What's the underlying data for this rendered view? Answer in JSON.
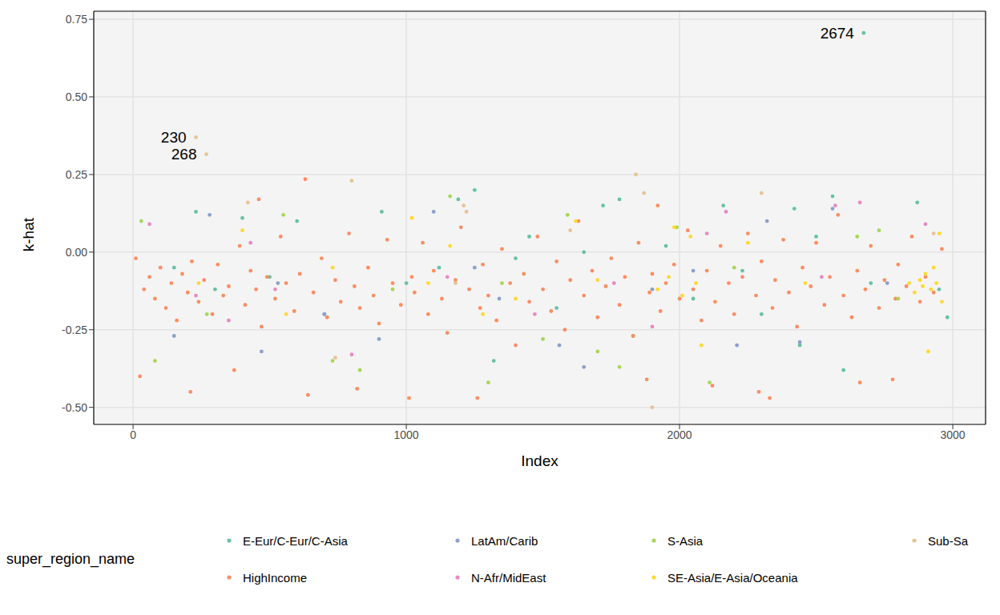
{
  "chart_data": {
    "type": "scatter",
    "x_label": "Index",
    "y_label": "k-hat",
    "legend_title": "super_region_name",
    "legend": "bottom",
    "grid": true,
    "marker": "circle",
    "xlim": [
      -144,
      3120
    ],
    "xticks": [
      0,
      1000,
      2000,
      3000
    ],
    "ylim": [
      -0.555,
      0.776
    ],
    "yticks": [
      {
        "value": -0.5,
        "label": "-0.50"
      },
      -0.25,
      {
        "value": 0,
        "label": "0.00"
      },
      0.25,
      {
        "value": 0.5,
        "label": "0.50"
      },
      0.75
    ],
    "annotations": [
      {
        "text": "230",
        "x": 230,
        "y": 0.37
      },
      {
        "text": "268",
        "x": 268,
        "y": 0.315
      },
      {
        "text": "2674",
        "x": 2674,
        "y": 0.706
      }
    ],
    "series": [
      {
        "name": "E-Eur/C-Eur/C-Asia",
        "color": "#66c2a5",
        "x": [
          150,
          230,
          300,
          400,
          500,
          600,
          700,
          910,
          1000,
          1120,
          1190,
          1250,
          1320,
          1400,
          1450,
          1550,
          1650,
          1720,
          1780,
          1830,
          1950,
          2050,
          2160,
          2230,
          2300,
          2420,
          2440,
          2500,
          2560,
          2600,
          2674,
          2700,
          2870,
          2950,
          2980
        ],
        "y": [
          -0.05,
          0.13,
          -0.12,
          0.11,
          -0.08,
          0.1,
          -0.2,
          0.13,
          -0.1,
          -0.05,
          0.17,
          0.2,
          -0.35,
          -0.02,
          0.05,
          -0.18,
          0.0,
          0.15,
          0.17,
          -0.27,
          0.02,
          -0.15,
          0.15,
          -0.06,
          -0.2,
          0.14,
          -0.3,
          0.05,
          0.18,
          -0.38,
          0.706,
          -0.1,
          0.16,
          -0.12,
          -0.21
        ]
      },
      {
        "name": "HighIncome",
        "color": "#fc8d62",
        "x": [
          10,
          25,
          40,
          60,
          80,
          100,
          120,
          140,
          160,
          180,
          200,
          210,
          215,
          240,
          260,
          290,
          310,
          330,
          350,
          370,
          390,
          410,
          430,
          450,
          460,
          470,
          490,
          520,
          540,
          560,
          590,
          610,
          630,
          640,
          660,
          690,
          710,
          740,
          760,
          790,
          810,
          820,
          830,
          860,
          880,
          900,
          930,
          950,
          980,
          1010,
          1020,
          1030,
          1060,
          1080,
          1100,
          1130,
          1150,
          1180,
          1200,
          1230,
          1260,
          1270,
          1280,
          1300,
          1330,
          1350,
          1380,
          1400,
          1430,
          1450,
          1480,
          1500,
          1530,
          1550,
          1580,
          1600,
          1630,
          1650,
          1680,
          1700,
          1730,
          1750,
          1780,
          1800,
          1830,
          1850,
          1880,
          1890,
          1900,
          1920,
          1930,
          1950,
          1980,
          2000,
          2030,
          2050,
          2080,
          2100,
          2120,
          2130,
          2150,
          2180,
          2200,
          2230,
          2250,
          2280,
          2290,
          2300,
          2330,
          2340,
          2350,
          2380,
          2400,
          2430,
          2450,
          2480,
          2500,
          2530,
          2550,
          2580,
          2600,
          2630,
          2650,
          2660,
          2680,
          2700,
          2730,
          2750,
          2780,
          2790,
          2800,
          2830,
          2850,
          2880,
          2900,
          2930,
          2960
        ],
        "y": [
          -0.02,
          -0.4,
          -0.12,
          -0.08,
          -0.15,
          -0.05,
          -0.18,
          -0.1,
          -0.22,
          -0.07,
          -0.13,
          -0.45,
          -0.03,
          -0.16,
          -0.09,
          -0.2,
          -0.04,
          -0.14,
          -0.11,
          -0.38,
          0.02,
          -0.17,
          -0.06,
          -0.12,
          0.17,
          -0.24,
          -0.08,
          -0.15,
          0.05,
          -0.1,
          -0.19,
          -0.07,
          0.235,
          -0.46,
          -0.13,
          -0.02,
          -0.21,
          -0.09,
          -0.16,
          0.06,
          -0.11,
          -0.44,
          -0.18,
          -0.05,
          -0.14,
          -0.23,
          0.04,
          -0.1,
          -0.17,
          -0.47,
          -0.08,
          -0.13,
          0.03,
          -0.2,
          -0.06,
          -0.15,
          -0.26,
          -0.09,
          0.08,
          -0.12,
          -0.47,
          -0.18,
          -0.04,
          -0.14,
          -0.22,
          0.01,
          -0.1,
          -0.3,
          -0.07,
          -0.16,
          0.05,
          -0.12,
          -0.19,
          -0.03,
          -0.25,
          -0.09,
          0.1,
          -0.14,
          -0.06,
          -0.21,
          -0.11,
          -0.02,
          -0.17,
          -0.08,
          -0.27,
          0.03,
          -0.41,
          -0.13,
          -0.07,
          0.15,
          -0.19,
          -0.1,
          -0.04,
          -0.15,
          0.07,
          -0.12,
          -0.22,
          -0.06,
          -0.43,
          -0.16,
          0.02,
          -0.1,
          -0.2,
          -0.08,
          0.06,
          -0.14,
          -0.45,
          -0.03,
          -0.47,
          -0.18,
          -0.09,
          0.04,
          -0.13,
          -0.24,
          -0.05,
          -0.11,
          0.03,
          -0.17,
          -0.08,
          0.12,
          -0.14,
          -0.21,
          -0.06,
          -0.42,
          -0.12,
          0.02,
          -0.18,
          -0.09,
          -0.41,
          -0.15,
          -0.04,
          -0.11,
          0.05,
          -0.16,
          -0.08,
          -0.13,
          0.01
        ]
      },
      {
        "name": "LatAm/Carib",
        "color": "#8da0cb",
        "x": [
          150,
          280,
          470,
          530,
          700,
          900,
          1100,
          1250,
          1340,
          1560,
          1650,
          1900,
          2050,
          2210,
          2320,
          2440,
          2560,
          2760
        ],
        "y": [
          -0.27,
          0.12,
          -0.32,
          -0.1,
          -0.2,
          -0.28,
          0.13,
          -0.05,
          -0.15,
          -0.3,
          -0.37,
          -0.12,
          -0.06,
          -0.3,
          0.1,
          -0.29,
          0.14,
          -0.1
        ]
      },
      {
        "name": "N-Afr/MidEast",
        "color": "#e78ac3",
        "x": [
          60,
          230,
          350,
          430,
          520,
          800,
          1150,
          1470,
          1760,
          1900,
          2100,
          2170,
          2520,
          2570,
          2660,
          2900
        ],
        "y": [
          0.09,
          -0.14,
          -0.22,
          0.03,
          -0.12,
          -0.33,
          -0.08,
          -0.2,
          -0.1,
          -0.24,
          0.06,
          0.13,
          -0.08,
          0.15,
          0.16,
          0.09
        ]
      },
      {
        "name": "S-Asia",
        "color": "#a6d854",
        "x": [
          30,
          80,
          270,
          550,
          730,
          830,
          950,
          1160,
          1300,
          1350,
          1500,
          1590,
          1700,
          1780,
          1990,
          2110,
          2200,
          2650,
          2730,
          2800
        ],
        "y": [
          0.1,
          -0.35,
          -0.2,
          0.12,
          -0.35,
          -0.38,
          -0.12,
          0.18,
          -0.42,
          -0.1,
          -0.28,
          0.12,
          -0.32,
          -0.37,
          0.08,
          -0.42,
          -0.05,
          0.05,
          0.07,
          -0.15
        ]
      },
      {
        "name": "SE-Asia/E-Asia/Oceania",
        "color": "#ffd92f",
        "x": [
          240,
          400,
          560,
          730,
          1020,
          1080,
          1160,
          1280,
          1400,
          1620,
          1700,
          1920,
          1960,
          1980,
          2010,
          2040,
          2060,
          2080,
          2250,
          2460,
          2840,
          2860,
          2880,
          2890,
          2900,
          2910,
          2920,
          2930,
          2940,
          2950,
          2960
        ],
        "y": [
          -0.1,
          0.07,
          -0.2,
          -0.05,
          0.11,
          -0.1,
          0.02,
          -0.2,
          -0.15,
          0.1,
          -0.09,
          -0.12,
          -0.08,
          0.08,
          -0.14,
          0.05,
          -0.1,
          -0.3,
          0.03,
          -0.1,
          -0.1,
          -0.13,
          -0.09,
          -0.11,
          -0.07,
          -0.32,
          -0.12,
          -0.05,
          -0.1,
          0.06,
          -0.16
        ]
      },
      {
        "name": "Sub-Sa",
        "color": "#e5c494",
        "x": [
          230,
          268,
          420,
          740,
          800,
          1180,
          1210,
          1220,
          1600,
          1840,
          1870,
          1900,
          2300,
          2930
        ],
        "y": [
          0.37,
          0.315,
          0.16,
          -0.34,
          0.23,
          -0.1,
          0.15,
          0.13,
          0.07,
          0.25,
          0.19,
          -0.5,
          0.19,
          0.06
        ]
      }
    ]
  }
}
